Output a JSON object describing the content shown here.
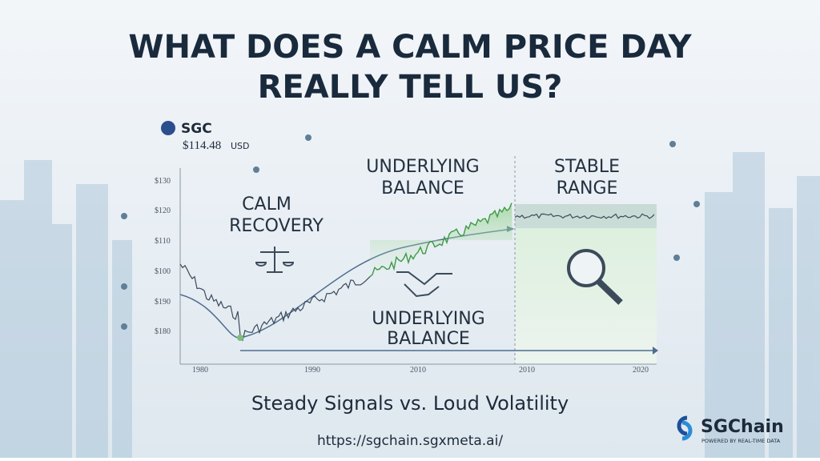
{
  "header": {
    "title_line1": "WHAT DOES A CALM PRICE DAY",
    "title_line2": "REALLY TELL US?"
  },
  "ticker": {
    "symbol": "SGC",
    "price": "$114.48",
    "currency": "USD"
  },
  "axis": {
    "y_labels": [
      "$130",
      "$120",
      "$110",
      "$100",
      "$190",
      "$180"
    ],
    "x_labels": [
      "1980",
      "1990",
      "2010",
      "2010",
      "2020"
    ]
  },
  "annotations": {
    "calm_recovery": [
      "CALM",
      "RECOVERY"
    ],
    "underlying_balance_top": [
      "UNDERLYING",
      "BALANCE"
    ],
    "stable_range": [
      "STABLE",
      "RANGE"
    ],
    "underlying_balance_bottom": [
      "UNDERLYING",
      "BALANCE"
    ]
  },
  "footer": {
    "subtitle": "Steady Signals vs. Loud Volatility",
    "url": "https://sgchain.sgxmeta.ai/"
  },
  "logo": {
    "name": "SGChain",
    "tagline": "POWERED BY REAL-TIME DATA"
  }
}
